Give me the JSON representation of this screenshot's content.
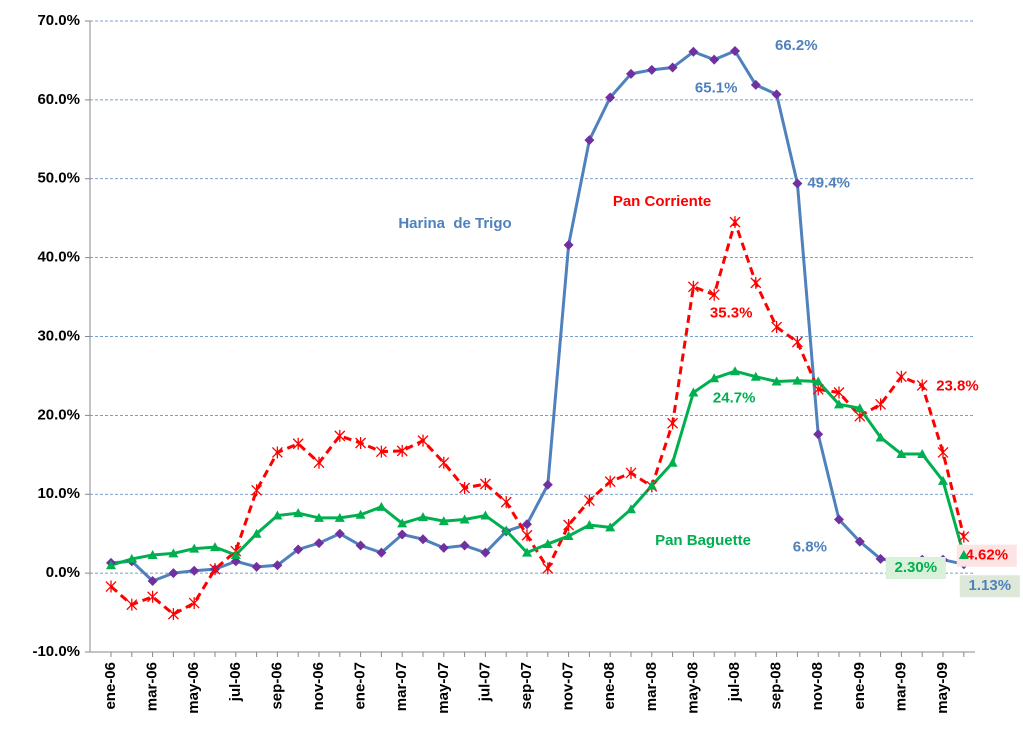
{
  "chart_data": {
    "type": "line",
    "categories": [
      "ene-06",
      null,
      "mar-06",
      null,
      "may-06",
      null,
      "jul-06",
      null,
      "sep-06",
      null,
      "nov-06",
      null,
      "ene-07",
      null,
      "mar-07",
      null,
      "may-07",
      null,
      "jul-07",
      null,
      "sep-07",
      null,
      "nov-07",
      null,
      "ene-08",
      null,
      "mar-08",
      null,
      "may-08",
      null,
      "jul-08",
      null,
      "sep-08",
      null,
      "nov-08",
      null,
      "ene-09",
      null,
      "mar-09",
      null,
      "may-09",
      null
    ],
    "series": [
      {
        "name": "Harina  de Trigo",
        "color": "#4f81bd",
        "marker_color": "#7030a0",
        "marker": "diamond",
        "dashed": false,
        "values": [
          1.3,
          1.5,
          -1.0,
          0,
          0.3,
          0.5,
          1.5,
          0.8,
          1.0,
          3.0,
          3.8,
          5.0,
          3.5,
          2.6,
          4.9,
          4.3,
          3.2,
          3.5,
          2.6,
          5.3,
          6.2,
          11.2,
          41.6,
          54.9,
          60.3,
          63.3,
          63.8,
          64.1,
          66.1,
          65.1,
          66.2,
          61.9,
          60.7,
          49.4,
          17.6,
          6.8,
          4.0,
          1.8,
          1.4,
          1.7,
          1.7,
          1.13
        ],
        "value_labels": [
          null,
          null,
          null,
          null,
          null,
          null,
          null,
          null,
          null,
          null,
          null,
          null,
          null,
          null,
          null,
          null,
          null,
          null,
          null,
          null,
          null,
          null,
          null,
          null,
          null,
          null,
          null,
          null,
          null,
          "65.1%",
          "66.2%",
          null,
          null,
          "49.4%",
          null,
          "6.8%",
          null,
          null,
          null,
          null,
          null,
          "1.13%"
        ]
      },
      {
        "name": "Pan Corriente",
        "color": "#ff0000",
        "marker_color": "#ff0000",
        "marker": "asterisk",
        "dashed": true,
        "values": [
          -1.7,
          -4.0,
          -3.0,
          -5.2,
          -3.8,
          0.5,
          2.8,
          10.5,
          15.3,
          16.4,
          14.0,
          17.4,
          16.5,
          15.4,
          15.5,
          16.8,
          14.0,
          10.8,
          11.3,
          9.0,
          4.8,
          0.6,
          6.1,
          9.2,
          11.6,
          12.7,
          11.0,
          19.0,
          36.3,
          35.3,
          44.5,
          36.8,
          31.2,
          29.3,
          23.3,
          22.9,
          19.9,
          21.4,
          24.9,
          23.8,
          15.3,
          4.62
        ],
        "value_labels": [
          null,
          null,
          null,
          null,
          null,
          null,
          null,
          null,
          null,
          null,
          null,
          null,
          null,
          null,
          null,
          null,
          null,
          null,
          null,
          null,
          null,
          null,
          null,
          null,
          null,
          null,
          null,
          null,
          null,
          "35.3%",
          null,
          null,
          null,
          null,
          null,
          null,
          null,
          null,
          null,
          "23.8%",
          null,
          "4.62%"
        ]
      },
      {
        "name": "Pan Baguette",
        "color": "#00b050",
        "marker_color": "#00b050",
        "marker": "triangle",
        "dashed": false,
        "values": [
          1.0,
          1.8,
          2.3,
          2.5,
          3.1,
          3.3,
          2.3,
          5.0,
          7.3,
          7.6,
          7.0,
          7.0,
          7.4,
          8.4,
          6.3,
          7.1,
          6.6,
          6.8,
          7.3,
          5.4,
          2.6,
          3.7,
          4.7,
          6.1,
          5.8,
          8.1,
          11.1,
          14.0,
          22.9,
          24.7,
          25.6,
          24.9,
          24.3,
          24.4,
          24.3,
          21.4,
          20.9,
          17.2,
          15.1,
          15.1,
          11.7,
          2.3
        ],
        "value_labels": [
          null,
          null,
          null,
          null,
          null,
          null,
          null,
          null,
          null,
          null,
          null,
          null,
          null,
          null,
          null,
          null,
          null,
          null,
          null,
          null,
          null,
          null,
          null,
          null,
          null,
          null,
          null,
          null,
          null,
          "24.7%",
          null,
          null,
          null,
          null,
          null,
          null,
          null,
          null,
          null,
          null,
          null,
          "2.30%"
        ]
      }
    ],
    "ylim": [
      -10,
      70
    ],
    "yticks": [
      {
        "value": -10,
        "label": "-10.0%"
      },
      {
        "value": 0,
        "label": "0.0%"
      },
      {
        "value": 10,
        "label": "10.0%"
      },
      {
        "value": 20,
        "label": "20.0%"
      },
      {
        "value": 30,
        "label": "30.0%"
      },
      {
        "value": 40,
        "label": "40.0%"
      },
      {
        "value": 50,
        "label": "50.0%"
      },
      {
        "value": 60,
        "label": "60.0%"
      },
      {
        "value": 70,
        "label": "70.0%"
      }
    ],
    "grid": true
  }
}
